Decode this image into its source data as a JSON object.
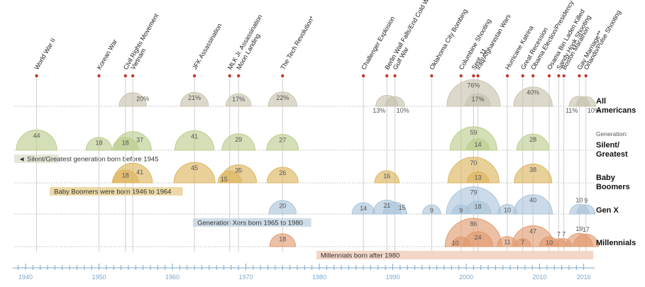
{
  "chart_data": {
    "type": "bubble-timeline",
    "title": "",
    "xlim": [
      1938,
      2017
    ],
    "x_ticks": [
      1940,
      1950,
      1960,
      1970,
      1980,
      1990,
      2000,
      2010,
      2016
    ],
    "events": [
      {
        "name": "World War II",
        "year": 1941.5
      },
      {
        "name": "Korean War",
        "year": 1950
      },
      {
        "name": "Civil Rights Movement",
        "year": 1953.6
      },
      {
        "name": "Vietnam",
        "year": 1954.6
      },
      {
        "name": "JFK Assassination",
        "year": 1963
      },
      {
        "name": "MLK Jr. Assassination",
        "year": 1967.8
      },
      {
        "name": "Moon Landing",
        "year": 1969
      },
      {
        "name": "The Tech Revolution*",
        "year": 1975
      },
      {
        "name": "Challenger Explosion",
        "year": 1986
      },
      {
        "name": "Berlin Wall Falls/End Cold War",
        "year": 1989.2
      },
      {
        "name": "Gulf War",
        "year": 1990.3
      },
      {
        "name": "Oklahoma City Bombing",
        "year": 1995.3
      },
      {
        "name": "Columbine Shooting",
        "year": 1999.3
      },
      {
        "name": "Sept. 11",
        "year": 2001
      },
      {
        "name": "Iraq/Afghanistan Wars",
        "year": 2001.6
      },
      {
        "name": "Hurricane Katrina",
        "year": 2005.6
      },
      {
        "name": "Great Recession",
        "year": 2007.7
      },
      {
        "name": "Obama Election/Presidency",
        "year": 2009.1
      },
      {
        "name": "Osama Bin Laden Killed",
        "year": 2011.3
      },
      {
        "name": "Sandy Hook Shooting",
        "year": 2012.6
      },
      {
        "name": "Boston Marathon",
        "year": 2013.3
      },
      {
        "name": "Gay Marriage**",
        "year": 2015.4
      },
      {
        "name": "Orlando/Pulse Shooting",
        "year": 2016.3
      }
    ],
    "rows": [
      {
        "key": "all",
        "label_lines": [
          "All",
          "Americans"
        ],
        "color": "#c7c2ad",
        "points": [
          {
            "year": 1954.6,
            "value": 20,
            "label": "20%",
            "label_pos": "right"
          },
          {
            "year": 1963,
            "value": 21,
            "label": "21%",
            "label_pos": "top"
          },
          {
            "year": 1969,
            "value": 17,
            "label": "17%",
            "label_pos": "top"
          },
          {
            "year": 1975,
            "value": 22,
            "label": "22%",
            "label_pos": "top"
          },
          {
            "year": 1989.2,
            "value": 13,
            "label": "13%",
            "label_pos": "below-left"
          },
          {
            "year": 1990.3,
            "value": 10,
            "label": "10%",
            "label_pos": "below-right"
          },
          {
            "year": 2001,
            "value": 76,
            "label": "76%",
            "label_pos": "top"
          },
          {
            "year": 2001.6,
            "value": 17,
            "label": "17%",
            "label_pos": "top"
          },
          {
            "year": 2009.1,
            "value": 40,
            "label": "40%",
            "label_pos": "top"
          },
          {
            "year": 2015.4,
            "value": 11,
            "label": "11%",
            "label_pos": "below-left"
          },
          {
            "year": 2016.3,
            "value": 10,
            "label": "10%",
            "label_pos": "below-right"
          }
        ]
      },
      {
        "key": "silent",
        "label_lines": [
          "Silent/",
          "Greatest"
        ],
        "color": "#b9cc8a",
        "note": "Generation:",
        "band": {
          "text": "◄  Silent/Greatest generation born before 1945",
          "from": 1937.9,
          "to": 1944.5,
          "color": "#e3e7d7"
        },
        "points": [
          {
            "year": 1941.5,
            "value": 44,
            "label": "44",
            "label_pos": "top"
          },
          {
            "year": 1950,
            "value": 18,
            "label": "18",
            "label_pos": "top"
          },
          {
            "year": 1953.6,
            "value": 18,
            "label": "18",
            "label_pos": "top"
          },
          {
            "year": 1954.6,
            "value": 37,
            "label": "37",
            "label_pos": "right"
          },
          {
            "year": 1963,
            "value": 41,
            "label": "41",
            "label_pos": "top"
          },
          {
            "year": 1969,
            "value": 29,
            "label": "29",
            "label_pos": "top"
          },
          {
            "year": 1975,
            "value": 27,
            "label": "27",
            "label_pos": "top"
          },
          {
            "year": 2001,
            "value": 59,
            "label": "59",
            "label_pos": "top"
          },
          {
            "year": 2001.6,
            "value": 14,
            "label": "14",
            "label_pos": "top"
          },
          {
            "year": 2009.1,
            "value": 28,
            "label": "28",
            "label_pos": "top"
          }
        ]
      },
      {
        "key": "boomers",
        "label_lines": [
          "Baby",
          "Boomers"
        ],
        "color": "#dcb35a",
        "band": {
          "text": "Baby Boomers were born 1946 to 1964",
          "from": 1943.3,
          "to": 1961.4,
          "color": "#ecd9a6"
        },
        "points": [
          {
            "year": 1953.6,
            "value": 18,
            "label": "18",
            "label_pos": "top"
          },
          {
            "year": 1954.6,
            "value": 41,
            "label": "41",
            "label_pos": "right"
          },
          {
            "year": 1963,
            "value": 45,
            "label": "45",
            "label_pos": "top"
          },
          {
            "year": 1967.8,
            "value": 15,
            "label": "15",
            "label_pos": "left"
          },
          {
            "year": 1969,
            "value": 35,
            "label": "35",
            "label_pos": "top"
          },
          {
            "year": 1975,
            "value": 26,
            "label": "26",
            "label_pos": "top"
          },
          {
            "year": 1989.2,
            "value": 16,
            "label": "16",
            "label_pos": "top"
          },
          {
            "year": 2001,
            "value": 70,
            "label": "70",
            "label_pos": "top"
          },
          {
            "year": 2001.6,
            "value": 13,
            "label": "13",
            "label_pos": "top"
          },
          {
            "year": 2009.1,
            "value": 38,
            "label": "38",
            "label_pos": "top"
          }
        ]
      },
      {
        "key": "genx",
        "label_lines": [
          "Gen X"
        ],
        "color": "#a9c3da",
        "band": {
          "text": "Generation Xers born 1965 to 1980",
          "from": 1962.8,
          "to": 1978.9,
          "color": "#cfdde9"
        },
        "points": [
          {
            "year": 1975,
            "value": 20,
            "label": "20",
            "label_pos": "top"
          },
          {
            "year": 1986,
            "value": 14,
            "label": "14",
            "label_pos": "top"
          },
          {
            "year": 1989.2,
            "value": 21,
            "label": "21",
            "label_pos": "top"
          },
          {
            "year": 1990.3,
            "value": 15,
            "label": "15",
            "label_pos": "right"
          },
          {
            "year": 1995.3,
            "value": 9,
            "label": "9",
            "label_pos": "top"
          },
          {
            "year": 1999.3,
            "value": 9,
            "label": "9",
            "label_pos": "top"
          },
          {
            "year": 2001,
            "value": 79,
            "label": "79",
            "label_pos": "top"
          },
          {
            "year": 2001.6,
            "value": 18,
            "label": "18",
            "label_pos": "top"
          },
          {
            "year": 2005.6,
            "value": 10,
            "label": "10",
            "label_pos": "top"
          },
          {
            "year": 2009.1,
            "value": 40,
            "label": "40",
            "label_pos": "top"
          },
          {
            "year": 2015.4,
            "value": 10,
            "label": "10",
            "label_pos": "top-above"
          },
          {
            "year": 2016.3,
            "value": 9,
            "label": "9",
            "label_pos": "top-above"
          }
        ]
      },
      {
        "key": "millennials",
        "label_lines": [
          "Millennials"
        ],
        "color": "#e09a6e",
        "band": {
          "text": "Millennials born after 1980",
          "from": 1979.6,
          "to": 2017.3,
          "color": "#f3d6c7"
        },
        "points": [
          {
            "year": 1975,
            "value": 18,
            "label": "18",
            "label_pos": "top"
          },
          {
            "year": 1999.3,
            "value": 10,
            "label": "10",
            "label_pos": "left"
          },
          {
            "year": 2001,
            "value": 86,
            "label": "86",
            "label_pos": "top"
          },
          {
            "year": 2001.6,
            "value": 24,
            "label": "24",
            "label_pos": "top"
          },
          {
            "year": 2005.6,
            "value": 11,
            "label": "11",
            "label_pos": "top"
          },
          {
            "year": 2007.7,
            "value": 7,
            "label": "7",
            "label_pos": "top"
          },
          {
            "year": 2009.1,
            "value": 47,
            "label": "47",
            "label_pos": "top"
          },
          {
            "year": 2011.3,
            "value": 10,
            "label": "10",
            "label_pos": "top"
          },
          {
            "year": 2012.6,
            "value": 7,
            "label": "7",
            "label_pos": "top-above"
          },
          {
            "year": 2013.3,
            "value": 7,
            "label": "7",
            "label_pos": "top-above"
          },
          {
            "year": 2015.4,
            "value": 19,
            "label": "19",
            "label_pos": "top-above"
          },
          {
            "year": 2016.3,
            "value": 17,
            "label": "17",
            "label_pos": "top-above"
          }
        ]
      }
    ]
  }
}
